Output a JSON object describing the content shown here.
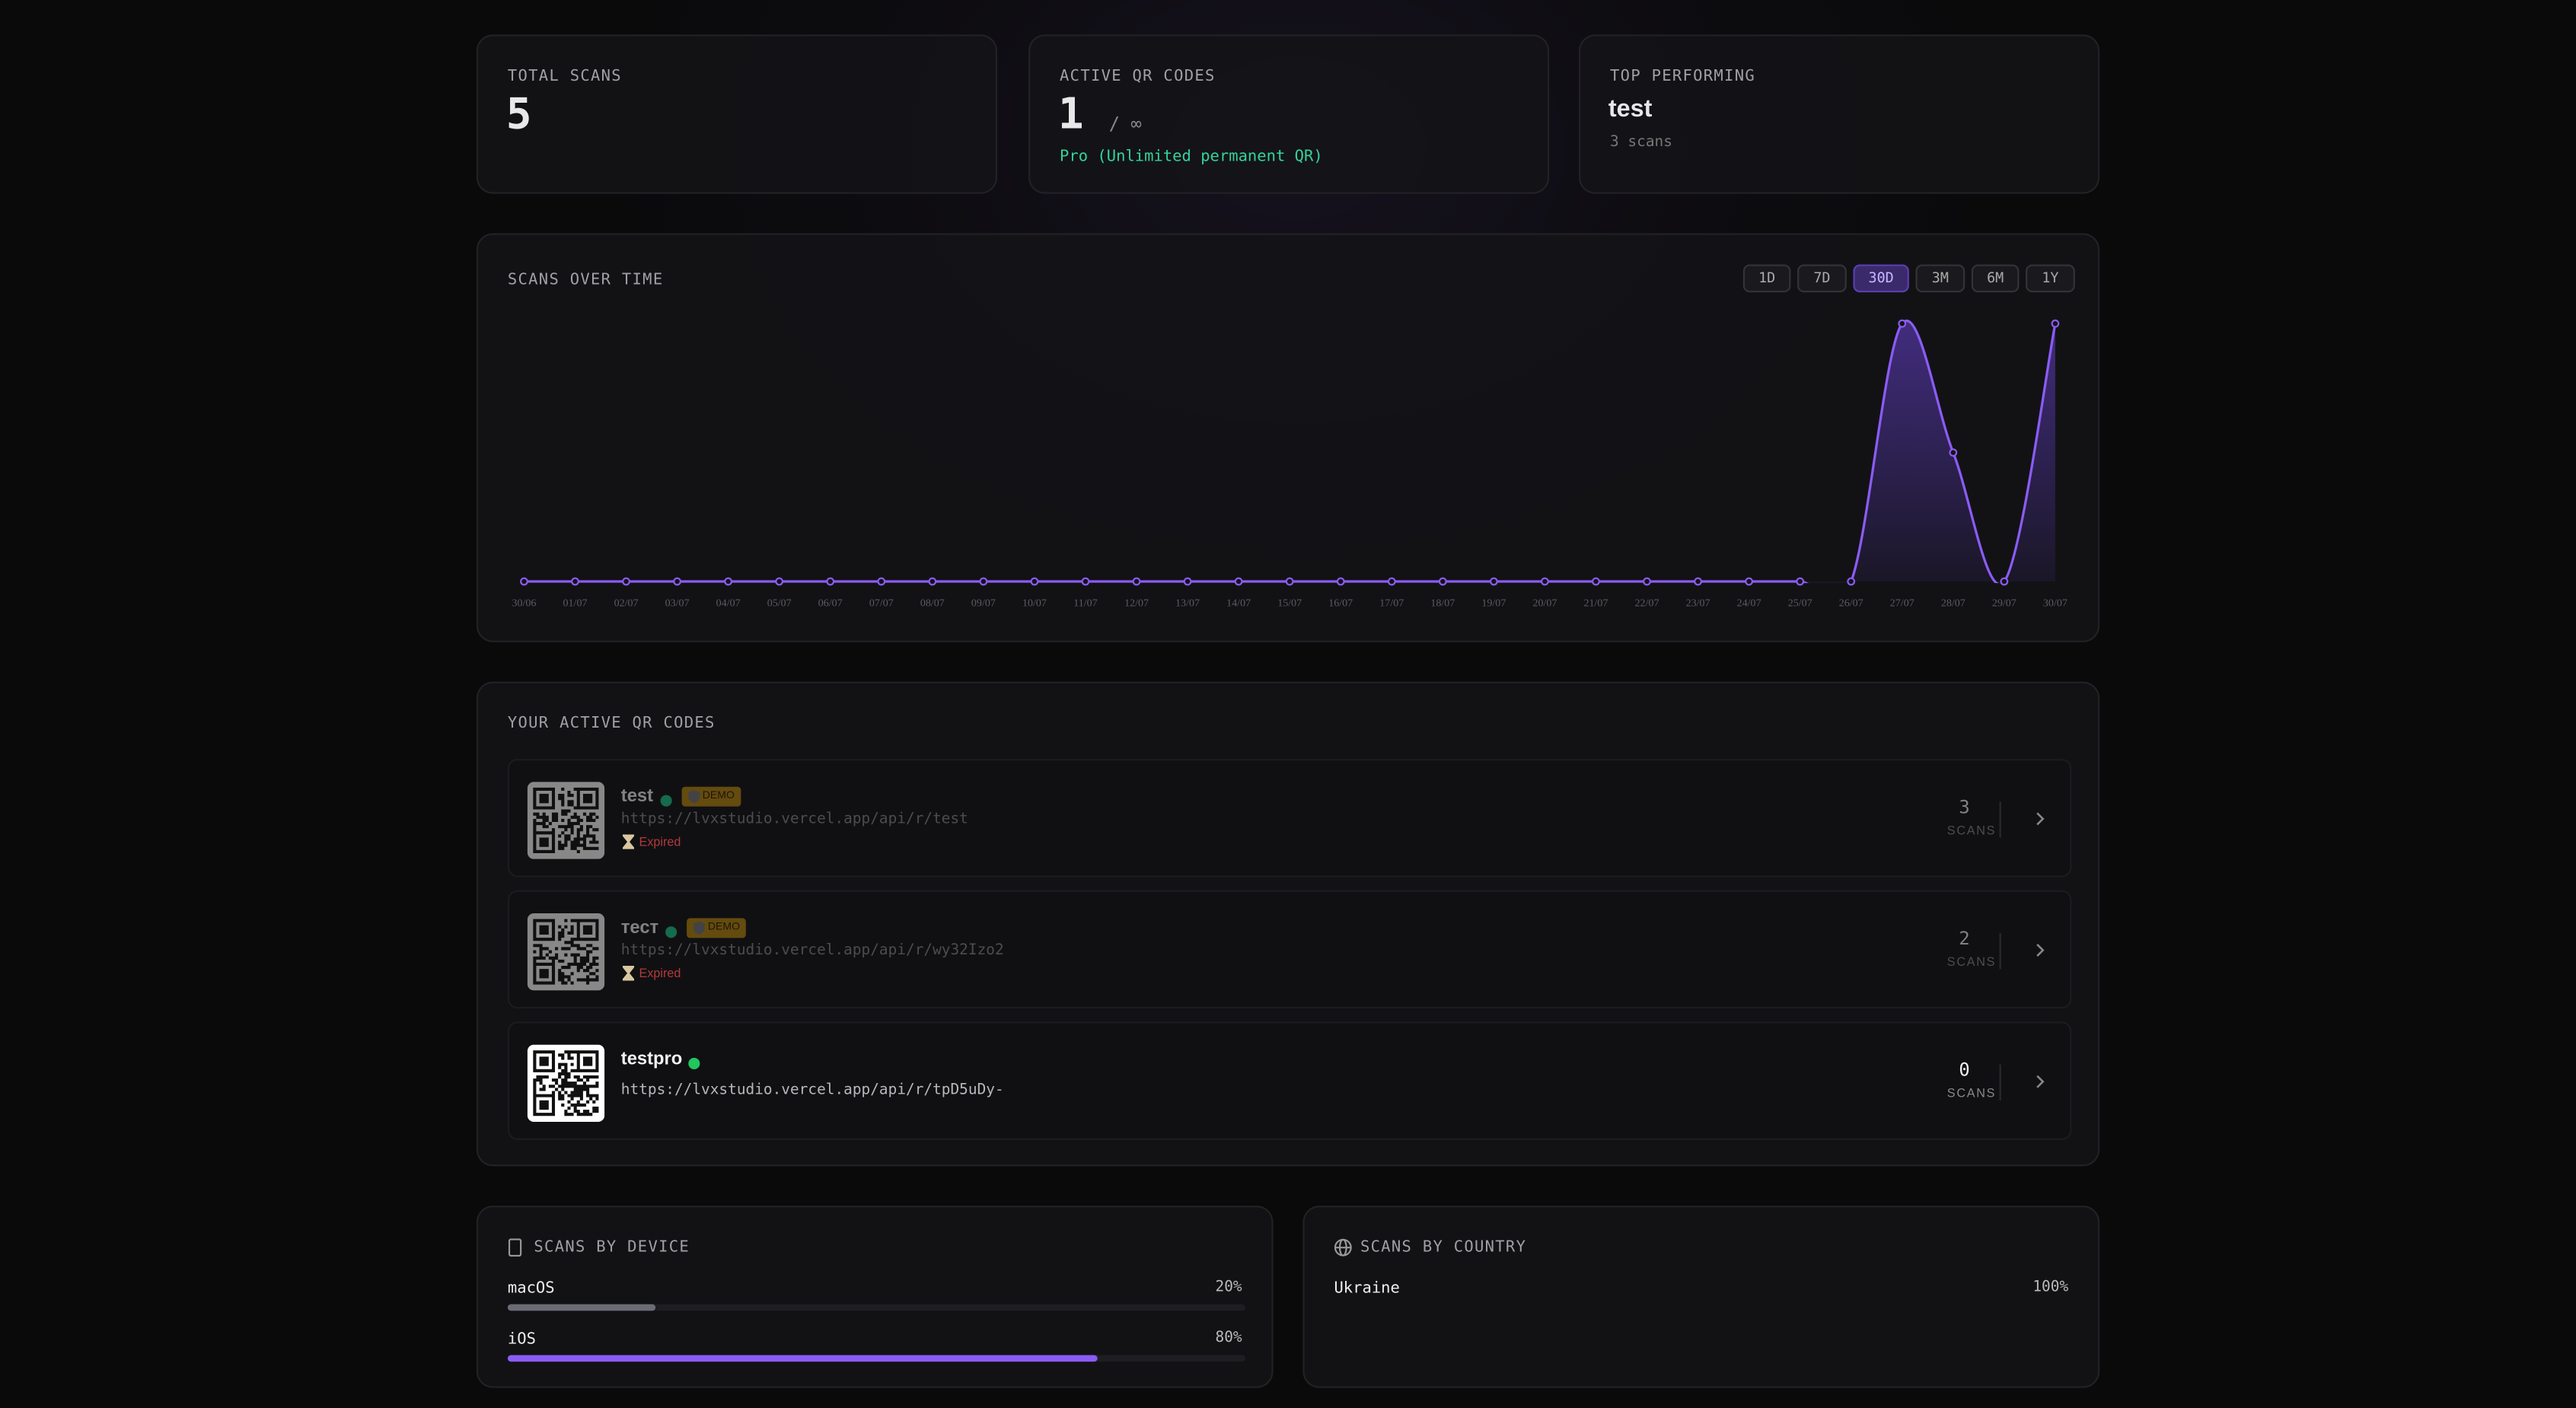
{
  "stats": {
    "total_scans": {
      "label": "TOTAL SCANS",
      "value": "5"
    },
    "active_codes": {
      "label": "ACTIVE QR CODES",
      "value": "1",
      "limit": "/ ∞",
      "plan": "Pro (Unlimited permanent QR)"
    },
    "top_performing": {
      "label": "TOP PERFORMING",
      "name": "test",
      "detail": "3 scans"
    }
  },
  "chart_data": {
    "type": "line",
    "title": "SCANS OVER TIME",
    "categories": [
      "30/06",
      "01/07",
      "02/07",
      "03/07",
      "04/07",
      "05/07",
      "06/07",
      "07/07",
      "08/07",
      "09/07",
      "10/07",
      "11/07",
      "12/07",
      "13/07",
      "14/07",
      "15/07",
      "16/07",
      "17/07",
      "18/07",
      "19/07",
      "20/07",
      "21/07",
      "22/07",
      "23/07",
      "24/07",
      "25/07",
      "26/07",
      "27/07",
      "28/07",
      "29/07",
      "30/07"
    ],
    "series": [
      {
        "name": "Scans",
        "color": "#8b5cf6",
        "values": [
          0,
          0,
          0,
          0,
          0,
          0,
          0,
          0,
          0,
          0,
          0,
          0,
          0,
          0,
          0,
          0,
          0,
          0,
          0,
          0,
          0,
          0,
          0,
          0,
          0,
          0,
          0,
          2,
          1,
          0,
          2
        ]
      }
    ],
    "ylim": [
      0,
      2
    ]
  },
  "range_selector": {
    "options": [
      "1D",
      "7D",
      "30D",
      "3M",
      "6M",
      "1Y"
    ],
    "selected": "30D"
  },
  "qr_list": {
    "title": "YOUR ACTIVE QR CODES",
    "scans_label": "SCANS",
    "items": [
      {
        "name": "test",
        "badge": "DEMO",
        "url": "https://lvxstudio.vercel.app/api/r/test",
        "status": "Expired",
        "scans": "3"
      },
      {
        "name": "тест",
        "badge": "DEMO",
        "url": "https://lvxstudio.vercel.app/api/r/wy32Izo2",
        "status": "Expired",
        "scans": "2"
      },
      {
        "name": "testpro",
        "url": "https://lvxstudio.vercel.app/api/r/tpD5uDy-",
        "scans": "0"
      }
    ]
  },
  "devices": {
    "title": "SCANS BY DEVICE",
    "items": [
      {
        "name": "macOS",
        "value": 20,
        "label": "20%"
      },
      {
        "name": "iOS",
        "value": 80,
        "label": "80%"
      }
    ]
  },
  "countries": {
    "title": "SCANS BY COUNTRY",
    "items": [
      {
        "name": "Ukraine",
        "value": 100,
        "label": "100%"
      }
    ]
  }
}
